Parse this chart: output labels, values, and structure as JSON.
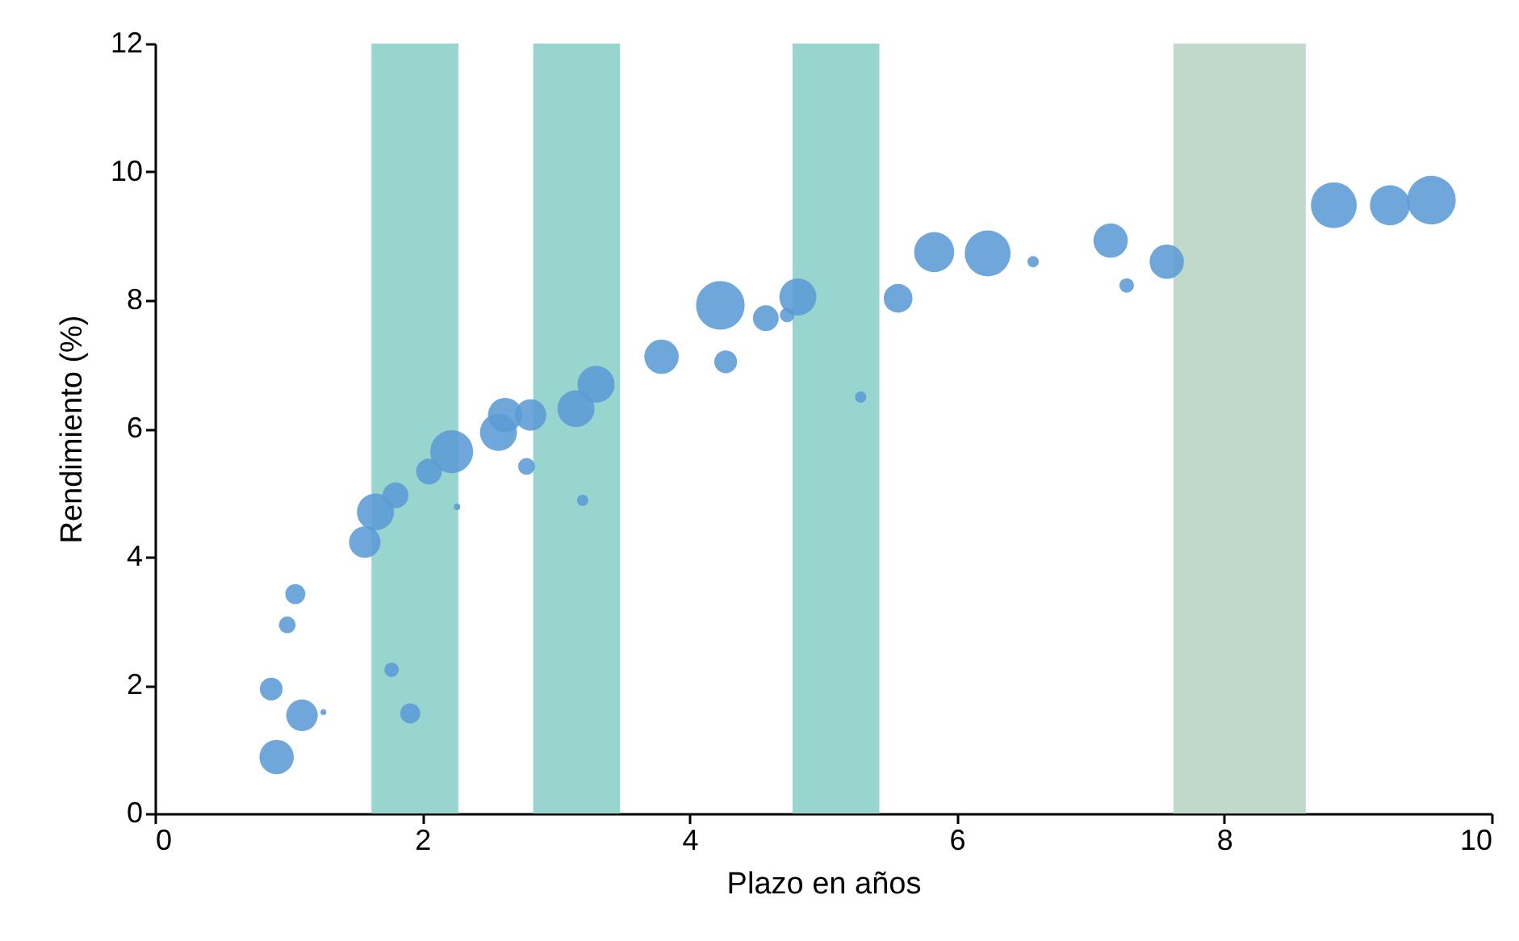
{
  "chart_data": {
    "type": "bubble",
    "xlabel": "Plazo en años",
    "ylabel": "Rendimiento (%)",
    "xlim": [
      0,
      10
    ],
    "xticks": [
      0,
      2,
      4,
      6,
      8,
      10
    ],
    "ylim": [
      0,
      12
    ],
    "yticks": [
      0,
      2,
      4,
      6,
      8,
      10,
      12
    ],
    "grid": false,
    "bands": [
      {
        "axis": "x",
        "from": 1.62,
        "to": 2.27,
        "color": "#99d5cf"
      },
      {
        "axis": "x",
        "from": 2.83,
        "to": 3.48,
        "color": "#99d5cf"
      },
      {
        "axis": "x",
        "from": 4.77,
        "to": 5.42,
        "color": "#99d5cf"
      },
      {
        "axis": "x",
        "from": 7.62,
        "to": 8.61,
        "color": "#c0d9cb"
      }
    ],
    "series": [
      {
        "color": "#5b9bd5",
        "x": [
          0.91,
          0.87,
          1.1,
          1.26,
          0.99,
          1.05,
          1.77,
          1.91,
          1.57,
          1.65,
          1.8,
          2.05,
          2.22,
          2.26,
          2.57,
          2.62,
          2.81,
          2.78,
          3.15,
          3.3,
          3.2,
          3.79,
          4.23,
          4.27,
          4.57,
          4.73,
          4.81,
          5.28,
          5.56,
          5.83,
          6.23,
          6.57,
          7.15,
          7.27,
          7.57,
          8.82,
          9.24,
          9.55
        ],
        "values": [
          0.88,
          1.94,
          1.53,
          1.58,
          2.94,
          3.42,
          2.24,
          1.56,
          4.23,
          4.7,
          4.96,
          5.33,
          5.64,
          4.78,
          5.94,
          6.21,
          6.21,
          5.41,
          6.31,
          6.69,
          4.88,
          7.12,
          7.92,
          7.04,
          7.72,
          7.77,
          8.05,
          6.49,
          8.03,
          8.75,
          8.73,
          8.6,
          8.93,
          8.23,
          8.6,
          9.48,
          9.48,
          9.56
        ],
        "sizes": [
          0.5,
          0.22,
          0.42,
          0.014,
          0.12,
          0.17,
          0.09,
          0.17,
          0.42,
          0.58,
          0.28,
          0.28,
          0.78,
          0.018,
          0.58,
          0.5,
          0.42,
          0.12,
          0.58,
          0.58,
          0.055,
          0.5,
          1,
          0.22,
          0.28,
          0.09,
          0.58,
          0.055,
          0.35,
          0.68,
          0.89,
          0.055,
          0.5,
          0.09,
          0.5,
          0.89,
          0.68,
          1
        ]
      }
    ]
  }
}
